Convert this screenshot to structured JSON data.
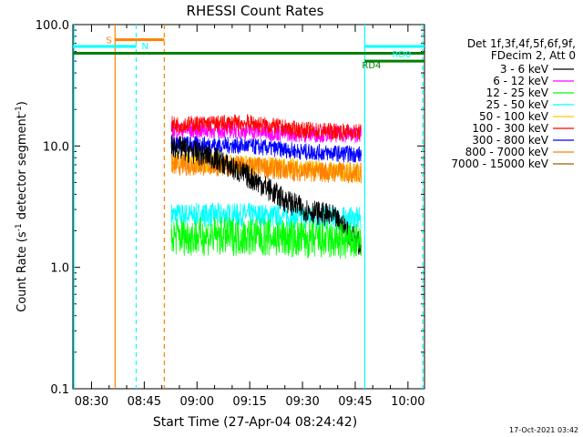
{
  "chart_data": {
    "type": "line",
    "title": "RHESSI Count Rates",
    "xlabel": "Start Time (27-Apr-04 08:24:42)",
    "ylabel_main": "Count Rate (s",
    "ylabel_sup1": "-1",
    "ylabel_mid": " detector segment",
    "ylabel_sup2": "-1",
    "ylabel_end": ")",
    "y_scale": "log",
    "ylim": [
      0.1,
      100
    ],
    "xlim_minutes": [
      0,
      100
    ],
    "xticks": [
      {
        "label": "08:30",
        "minutes": 5.3
      },
      {
        "label": "08:45",
        "minutes": 20.3
      },
      {
        "label": "09:00",
        "minutes": 35.3
      },
      {
        "label": "09:15",
        "minutes": 50.3
      },
      {
        "label": "09:30",
        "minutes": 65.3
      },
      {
        "label": "09:45",
        "minutes": 80.3
      },
      {
        "label": "10:00",
        "minutes": 95.3
      }
    ],
    "yticks": [
      {
        "label": "0.1",
        "value": 0.1
      },
      {
        "label": "1.0",
        "value": 1.0
      },
      {
        "label": "10.0",
        "value": 10.0
      },
      {
        "label": "100.0",
        "value": 100.0
      }
    ],
    "legend": {
      "header1": "Det 1f,3f,4f,5f,6f,9f,",
      "header2": "FDecim 2, Att 0",
      "placement": "right"
    },
    "series": [
      {
        "name": "3 - 6 keV",
        "color": "#000000",
        "values": [
          {
            "minute": 28,
            "rate": 10.0
          },
          {
            "minute": 40,
            "rate": 8.0
          },
          {
            "minute": 47,
            "rate": 6.2
          },
          {
            "minute": 53,
            "rate": 5.0
          },
          {
            "minute": 60,
            "rate": 3.6
          },
          {
            "minute": 66,
            "rate": 3.0
          },
          {
            "minute": 74,
            "rate": 2.6
          },
          {
            "minute": 78,
            "rate": 2.0
          },
          {
            "minute": 82,
            "rate": 1.5
          }
        ]
      },
      {
        "name": "6 - 12 keV",
        "color": "#ff00ff",
        "values": [
          {
            "minute": 28,
            "rate": 13.5
          },
          {
            "minute": 45,
            "rate": 13.5
          },
          {
            "minute": 55,
            "rate": 13.0
          },
          {
            "minute": 65,
            "rate": 12.5
          },
          {
            "minute": 82,
            "rate": 12.5
          }
        ]
      },
      {
        "name": "12 - 25 keV",
        "color": "#00ff00",
        "values": [
          {
            "minute": 28,
            "rate": 1.8
          },
          {
            "minute": 50,
            "rate": 1.8
          },
          {
            "minute": 65,
            "rate": 1.7
          },
          {
            "minute": 82,
            "rate": 1.6
          }
        ]
      },
      {
        "name": "25 - 50 keV",
        "color": "#00ffff",
        "values": [
          {
            "minute": 28,
            "rate": 2.7
          },
          {
            "minute": 50,
            "rate": 2.7
          },
          {
            "minute": 65,
            "rate": 2.6
          },
          {
            "minute": 82,
            "rate": 2.5
          }
        ]
      },
      {
        "name": "50 - 100 keV",
        "color": "#ffcc00",
        "values": [
          {
            "minute": 28,
            "rate": 7.5
          },
          {
            "minute": 50,
            "rate": 7.0
          },
          {
            "minute": 65,
            "rate": 6.5
          },
          {
            "minute": 82,
            "rate": 6.0
          }
        ]
      },
      {
        "name": "100 - 300 keV",
        "color": "#ff0000",
        "values": [
          {
            "minute": 28,
            "rate": 15.0
          },
          {
            "minute": 50,
            "rate": 15.5
          },
          {
            "minute": 65,
            "rate": 13.5
          },
          {
            "minute": 82,
            "rate": 13.0
          }
        ]
      },
      {
        "name": "300 - 800 keV",
        "color": "#0000ff",
        "values": [
          {
            "minute": 28,
            "rate": 10.5
          },
          {
            "minute": 50,
            "rate": 10.0
          },
          {
            "minute": 65,
            "rate": 9.0
          },
          {
            "minute": 82,
            "rate": 8.5
          }
        ]
      },
      {
        "name": "800 - 7000 keV",
        "color": "#ff8000",
        "values": [
          {
            "minute": 28,
            "rate": 7.0
          },
          {
            "minute": 50,
            "rate": 6.8
          },
          {
            "minute": 65,
            "rate": 6.2
          },
          {
            "minute": 82,
            "rate": 6.0
          }
        ]
      },
      {
        "name": "7000 - 15000 keV",
        "color": "#996600",
        "values": []
      }
    ],
    "annotations": [
      {
        "label": "S",
        "color": "#ff8000",
        "rate": 75,
        "minute_start": 12,
        "minute_end": 26
      },
      {
        "label": "N",
        "color": "#00ffff",
        "rate": 66,
        "minute_start": 0,
        "minute_end": 18
      },
      {
        "label": "RD0",
        "color": "#00ffff",
        "rate": 66,
        "minute_start": 83,
        "minute_end": 100
      },
      {
        "label": "RD4",
        "color": "#008000",
        "rate": 50,
        "minute_start": 83,
        "minute_end": 100
      }
    ],
    "footer": "17-Oct-2021 03:42"
  }
}
